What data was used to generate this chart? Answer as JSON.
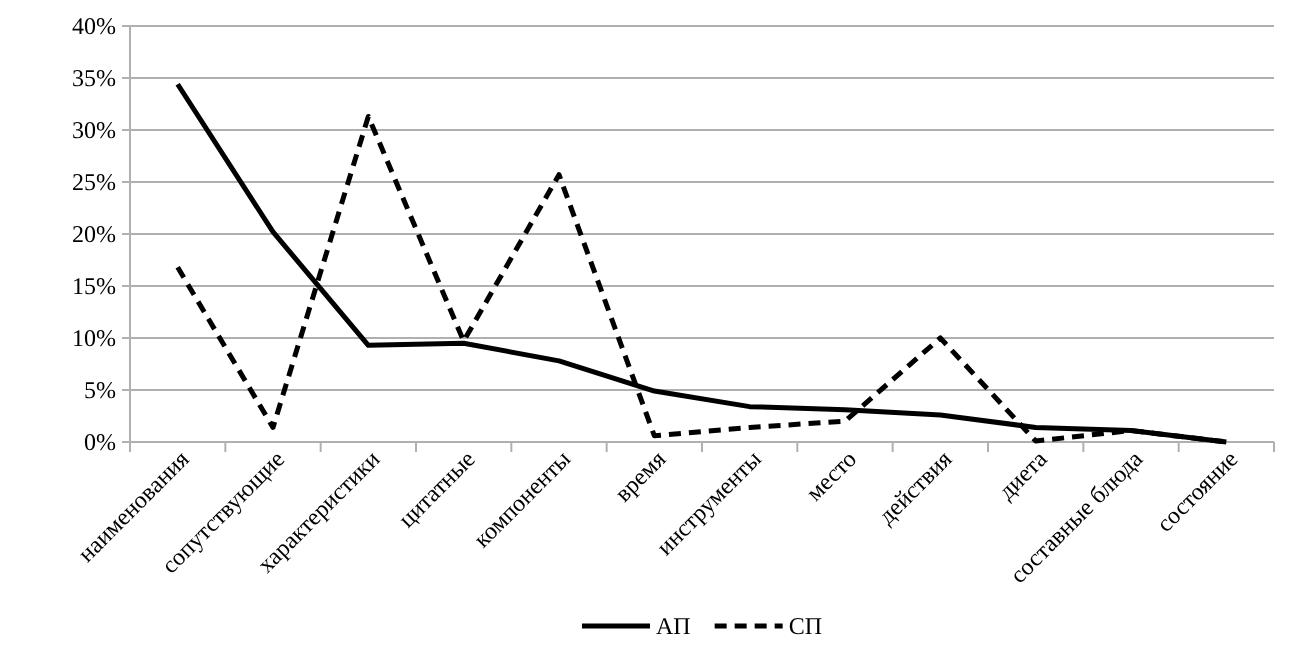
{
  "chart_data": {
    "type": "line",
    "categories": [
      "наименования",
      "сопутствующие",
      "характеристики",
      "цитатные",
      "компоненты",
      "время",
      "инструменты",
      "место",
      "действия",
      "диета",
      "составные блюда",
      "состояние"
    ],
    "series": [
      {
        "name": "АП",
        "color": "#000000",
        "line_style": "solid",
        "values": [
          34.4,
          20.2,
          9.3,
          9.5,
          7.8,
          4.9,
          3.4,
          3.1,
          2.6,
          1.4,
          1.1,
          0
        ]
      },
      {
        "name": "СП",
        "color": "#000000",
        "line_style": "dashed",
        "values": [
          16.8,
          1.4,
          31.3,
          9.7,
          25.7,
          0.6,
          1.4,
          2.0,
          10.0,
          0.1,
          1.1,
          0
        ]
      }
    ],
    "ylim": [
      0,
      40
    ],
    "yticks": [
      {
        "value": 0,
        "label": "0%"
      },
      {
        "value": 5,
        "label": "5%"
      },
      {
        "value": 10,
        "label": "10%"
      },
      {
        "value": 15,
        "label": "15%"
      },
      {
        "value": 20,
        "label": "20%"
      },
      {
        "value": 25,
        "label": "25%"
      },
      {
        "value": 30,
        "label": "30%"
      },
      {
        "value": 35,
        "label": "35%"
      },
      {
        "value": 40,
        "label": "40%"
      }
    ],
    "grid": "y",
    "legend": "bottom",
    "marker": "none"
  }
}
